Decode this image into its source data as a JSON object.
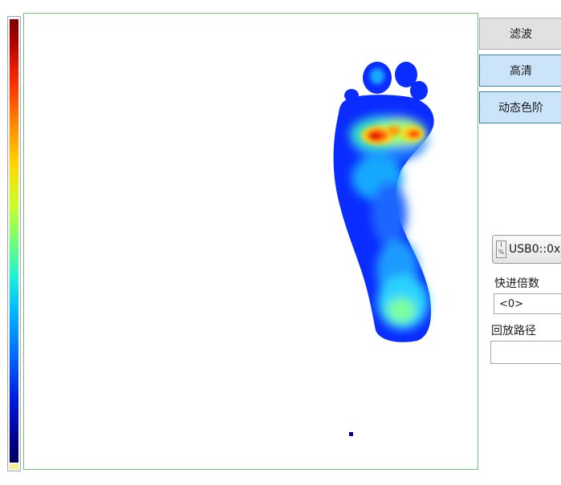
{
  "buttons": {
    "filter": "滤波",
    "hd": "高清",
    "dynamic_scale": "动态色阶"
  },
  "device": {
    "io_icon": "I/O-icon",
    "resource": "USB0::0x"
  },
  "fast_forward": {
    "label": "快进倍数",
    "value": "<0>"
  },
  "playback": {
    "label": "回放路径",
    "value": ""
  },
  "colors": {
    "canvas_border": "#6ec07a",
    "active_button": "#cce4f7",
    "button": "#e1e1e1"
  }
}
